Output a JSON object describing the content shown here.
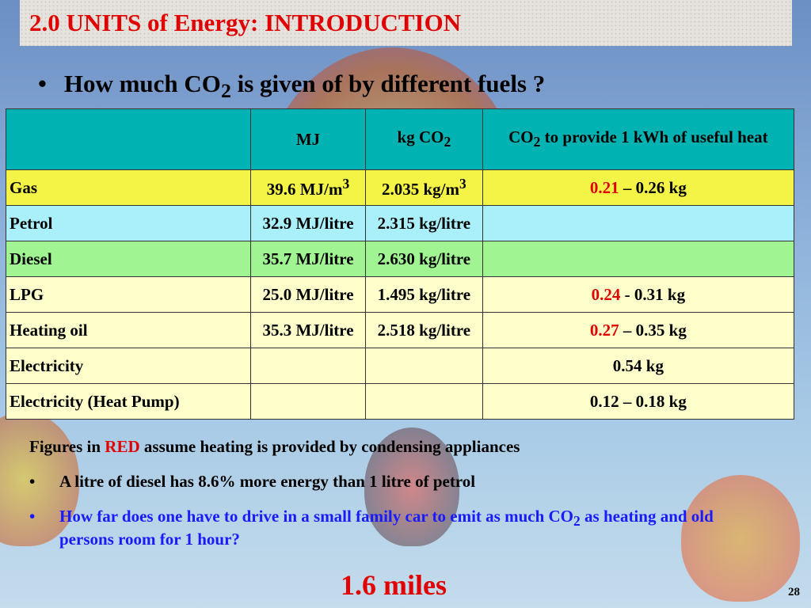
{
  "title": "2.0  UNITS of Energy: INTRODUCTION",
  "question": [
    "How much CO",
    {
      "sub": "2"
    },
    "  is given of by different fuels    ?"
  ],
  "table": {
    "header_color": "#00b2b2",
    "header": [
      [],
      [
        "MJ"
      ],
      [
        "kg CO",
        {
          "sub": "2"
        }
      ],
      [
        "CO",
        {
          "sub": "2"
        },
        "  to provide 1 kWh of useful heat"
      ]
    ],
    "rows": [
      {
        "color": "#f4f446",
        "cells": [
          [
            "Gas"
          ],
          [
            "39.6  MJ/m",
            {
              "sup": "3"
            }
          ],
          [
            "2.035 kg/m",
            {
              "sup": "3"
            }
          ],
          [
            {
              "red": "0.21"
            },
            " – 0.26 kg"
          ]
        ]
      },
      {
        "color": "#a9f0fb",
        "cells": [
          [
            "Petrol"
          ],
          [
            "32.9 MJ/litre"
          ],
          [
            "2.315 kg/litre"
          ],
          []
        ]
      },
      {
        "color": "#a0f592",
        "cells": [
          [
            "Diesel"
          ],
          [
            "35.7 MJ/litre"
          ],
          [
            "2.630 kg/litre"
          ],
          []
        ]
      },
      {
        "color": "#ffffcc",
        "cells": [
          [
            "LPG"
          ],
          [
            "25.0 MJ/litre"
          ],
          [
            "1.495 kg/litre"
          ],
          [
            {
              "red": "0.24"
            },
            " - 0.31 kg"
          ]
        ]
      },
      {
        "color": "#ffffcc",
        "cells": [
          [
            "Heating oil"
          ],
          [
            "35.3 MJ/litre"
          ],
          [
            "2.518 kg/litre"
          ],
          [
            {
              "red": "0.27"
            },
            " – 0.35 kg"
          ]
        ]
      },
      {
        "color": "#ffffcc",
        "cells": [
          [
            "Electricity"
          ],
          [],
          [],
          [
            "0.54 kg"
          ]
        ]
      },
      {
        "color": "#ffffcc",
        "cells": [
          [
            "Electricity (Heat Pump)"
          ],
          [],
          [],
          [
            "0.12 – 0.18 kg"
          ]
        ]
      }
    ]
  },
  "note": [
    "Figures in ",
    {
      "red": "RED"
    },
    " assume heating is provided by condensing appliances"
  ],
  "bullets": [
    [
      "A litre of diesel has 8.6% more energy than 1 litre of petrol"
    ],
    [
      "How far does one have to drive in a small family car to emit as much CO",
      {
        "sub": "2"
      },
      " as heating and old persons room for 1 hour?"
    ]
  ],
  "answer": "1.6 miles",
  "page_number": "28"
}
